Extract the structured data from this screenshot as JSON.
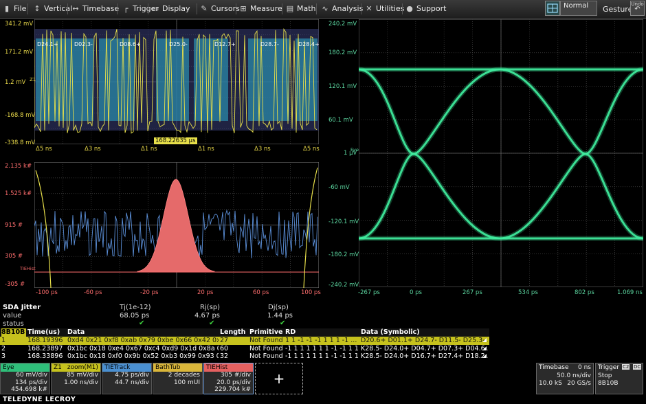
{
  "menu": {
    "items": [
      {
        "label": "File",
        "icon": "file-icon",
        "glyph": "▮"
      },
      {
        "label": "Vertical",
        "icon": "vertical-icon",
        "glyph": "↕"
      },
      {
        "label": "Timebase",
        "icon": "timebase-icon",
        "glyph": "↔"
      },
      {
        "label": "Trigger",
        "icon": "trigger-icon",
        "glyph": "┌"
      },
      {
        "label": "Display",
        "icon": "display-icon",
        "glyph": "▭"
      },
      {
        "label": "Cursors",
        "icon": "cursors-icon",
        "glyph": "✎"
      },
      {
        "label": "Measure",
        "icon": "measure-icon",
        "glyph": "⊞"
      },
      {
        "label": "Math",
        "icon": "math-icon",
        "glyph": "▤"
      },
      {
        "label": "Analysis",
        "icon": "analysis-icon",
        "glyph": "∿"
      },
      {
        "label": "Utilities",
        "icon": "utilities-icon",
        "glyph": "✕"
      },
      {
        "label": "Support",
        "icon": "support-icon",
        "glyph": "●"
      }
    ],
    "normal_label": "Normal",
    "gesture_label": "Gesture",
    "undo_label": "Undo"
  },
  "decode_grid": {
    "y_labels": [
      "341.2 mV",
      "171.2 mV",
      "1.2 mV",
      "-168.8 mV",
      "-338.8 mV"
    ],
    "x_labels": [
      "Δ5 ns",
      "Δ3 ns",
      "Δ1 ns",
      "Δ1 ns",
      "Δ3 ns",
      "Δ5 ns"
    ],
    "symbols": [
      "D24.1+",
      "D02.3-",
      "D08.6+",
      "D25.0-",
      "D12.7+",
      "D28.7-",
      "D28.4+"
    ],
    "time_marker": "168.22635 μs",
    "trace_marker": "Z1"
  },
  "hist_grid": {
    "y_labels": [
      "2.135 k#",
      "1.525 k#",
      "915 #",
      "305 #",
      "-305 #"
    ],
    "x_labels": [
      "-100 ps",
      "-60 ps",
      "-20 ps",
      "20 ps",
      "60 ps",
      "100 ps"
    ],
    "trace_marker": "TIEHist"
  },
  "eye_grid": {
    "y_labels": [
      "240.2 mV",
      "180.2 mV",
      "120.1 mV",
      "60.1 mV",
      "1 μV",
      "-60 mV",
      "-120.1 mV",
      "-180.2 mV",
      "-240.2 mV"
    ],
    "x_labels": [
      "-267 ps",
      "0 ps",
      "267 ps",
      "534 ps",
      "802 ps",
      "1.069 ns"
    ],
    "trace_marker": "Eye"
  },
  "jitter": {
    "title": "SDA Jitter",
    "row_labels": [
      "value",
      "status"
    ],
    "cols": [
      {
        "name": "Tj(1e-12)",
        "value": "68.05 ps"
      },
      {
        "name": "Rj(sp)",
        "value": "4.67 ps"
      },
      {
        "name": "Dj(sp)",
        "value": "1.44 ps"
      }
    ],
    "check": "✔"
  },
  "decode_table": {
    "headers": [
      "8B10B",
      "Time(us)",
      "Data",
      "Length",
      "Primitive",
      "RD",
      "Data (Symbolic)"
    ],
    "rows": [
      [
        "1",
        "168.19396",
        "0xd4 0x21 0xf8 0xab 0x79 0xbe 0x66 0x42 0x...",
        "27",
        "Not Found",
        "1 1 -1 -1 -1 1 1 1 -1 ...",
        "D20.6+ D01.1+ D24.7- D11.5- D25.3-..."
      ],
      [
        "2",
        "168.23897",
        "0x1bc 0x18 0xe4 0x67 0xc4 0xd9 0x1d 0x8a 0...",
        "60",
        "Not Found",
        "-1 1 1 1 1 1 1 -1 -1 1 1...",
        "K28.5- D24.0+ D04.7+ D07.3+ D04.6..."
      ],
      [
        "3",
        "168.33896",
        "0x1bc 0x18 0xf0 0x9b 0x52 0xb3 0x99 0x93 0...",
        "32",
        "Not Found",
        "-1 1 1 1 1 1 1 -1 -1 1 1...",
        "K28.5- D24.0+ D16.7+ D27.4+ D18.2..."
      ]
    ]
  },
  "descriptors": [
    {
      "name": "Eye",
      "prefix": "",
      "lines": [
        "60 mV/div",
        "134 ps/div",
        "454.698 k#"
      ],
      "color": "#2fbf7a"
    },
    {
      "name": "zoom(M1)",
      "prefix": "Z1",
      "lines": [
        "85 mV/div",
        "1.00 ns/div"
      ],
      "color": "#c6c21d"
    },
    {
      "name": "TIETrack",
      "prefix": "",
      "lines": [
        "4.75 ps/div",
        "44.7 ns/div"
      ],
      "color": "#4a8fd0"
    },
    {
      "name": "BathTub",
      "prefix": "",
      "lines": [
        "2 decades",
        "100 mUI"
      ],
      "color": "#d9b63a"
    },
    {
      "name": "TIEHist",
      "prefix": "",
      "lines": [
        "305 #/div",
        "20.0 ps/div",
        "229.704 k#"
      ],
      "color": "#e56060"
    }
  ],
  "add_label": "+",
  "timebase": {
    "title": "Timebase",
    "delay": "0 ns",
    "rate": "50.0 ns/div",
    "samples": "10.0 kS",
    "srate": "20 GS/s"
  },
  "trigger": {
    "title": "Trigger",
    "badge1": "C2",
    "badge2": "DC",
    "mode": "Stop",
    "type": "8B10B"
  },
  "brand": "TELEDYNE LECROY",
  "colors": {
    "yellow": "#e8e04a",
    "eye": "#40f0a0",
    "hist": "#ff6e6e",
    "track": "#5b8fd8",
    "bathtub": "#e8e04a"
  }
}
